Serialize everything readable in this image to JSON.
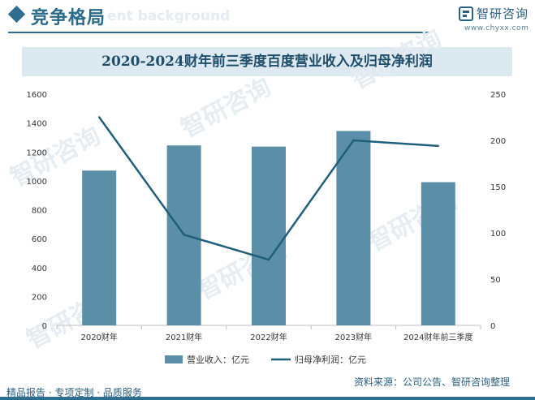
{
  "header": {
    "title": "竞争格局",
    "ghost_text": "ent background",
    "brand_name": "智研咨询",
    "brand_url": "www.chyxx.com"
  },
  "watermark_text": "智研咨询",
  "footer": {
    "left": "精品报告 · 专项定制 · 品质服务",
    "right": "资料来源：公司公告、智研咨询整理"
  },
  "colors": {
    "bar": "#5b8fa8",
    "line": "#1f5f7a",
    "accent": "#2f6e8e"
  },
  "chart_data": {
    "type": "bar",
    "title": "2020-2024财年前三季度百度营业收入及归母净利润",
    "categories": [
      "2020财年",
      "2021财年",
      "2022财年",
      "2023财年",
      "2024财年前三季度"
    ],
    "series": [
      {
        "name": "营业收入：亿元",
        "type": "bar",
        "axis": "left",
        "values": [
          1071,
          1245,
          1237,
          1345,
          991
        ]
      },
      {
        "name": "归母净利润：亿元",
        "type": "line",
        "axis": "right",
        "values": [
          225,
          98,
          71,
          200,
          194
        ]
      }
    ],
    "y_left": {
      "min": 0,
      "max": 1600,
      "ticks": [
        0,
        200,
        400,
        600,
        800,
        1000,
        1200,
        1400,
        1600
      ]
    },
    "y_right": {
      "min": 0,
      "max": 250,
      "ticks": [
        0,
        50,
        100,
        150,
        200,
        250
      ]
    },
    "legend_position": "bottom",
    "grid": false
  }
}
